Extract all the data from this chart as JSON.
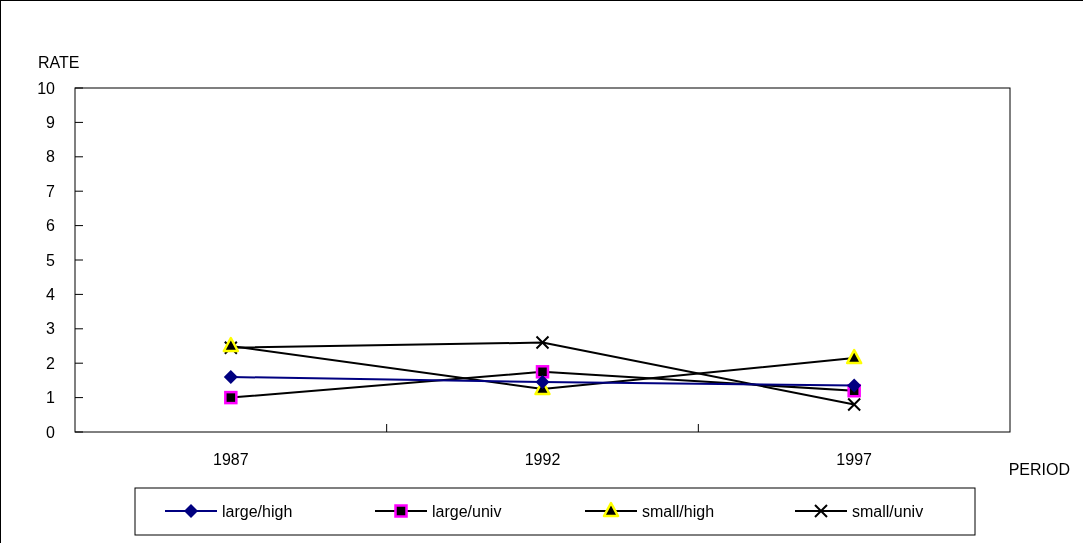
{
  "chart_data": {
    "type": "line",
    "xlabel": "PERIOD",
    "ylabel": "RATE",
    "categories": [
      "1987",
      "1992",
      "1997"
    ],
    "ylim": [
      0,
      10
    ],
    "yticks": [
      0,
      1,
      2,
      3,
      4,
      5,
      6,
      7,
      8,
      9,
      10
    ],
    "legend": "bottom",
    "grid": false,
    "series": [
      {
        "name": "large/high",
        "color": "#000080",
        "marker": "diamond",
        "values": [
          1.6,
          1.45,
          1.35
        ]
      },
      {
        "name": "large/univ",
        "color": "#000000",
        "marker": "square",
        "values": [
          1.0,
          1.75,
          1.2
        ]
      },
      {
        "name": "small/high",
        "color": "#000000",
        "marker": "triangle",
        "values": [
          2.5,
          1.25,
          2.15
        ]
      },
      {
        "name": "small/univ",
        "color": "#000000",
        "marker": "cross",
        "values": [
          2.45,
          2.6,
          0.8
        ]
      }
    ]
  }
}
